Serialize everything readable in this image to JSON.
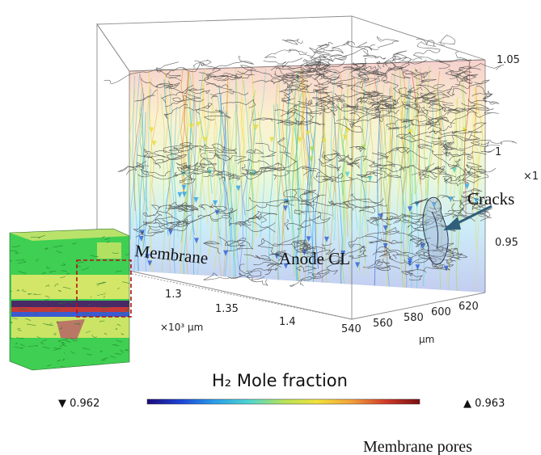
{
  "figure": {
    "annotations": {
      "membrane": "Membrane",
      "anode_cl": "Anode CL",
      "cracks": "Cracks",
      "membrane_pores": "Membrane pores"
    },
    "axes": {
      "z_ticks": [
        "1.05",
        "1",
        "0.95"
      ],
      "z_multiplier": "×1",
      "x_ticks": [
        "1.3",
        "1.35",
        "1.4"
      ],
      "x_unit": "×10³ µm",
      "y_ticks": [
        "540",
        "560",
        "580",
        "600",
        "620"
      ],
      "y_unit": "µm"
    },
    "colorbar": {
      "title": "H₂ Mole fraction",
      "min_label": "▼ 0.962",
      "max_label": "▲ 0.963",
      "stops": [
        "#1c0a7a",
        "#1d45d8",
        "#2aa0e8",
        "#4fd6d0",
        "#b6e35a",
        "#f1e13a",
        "#f2a13a",
        "#d23a2a",
        "#7a0f10"
      ]
    },
    "inset": {
      "layer_colors": {
        "membrane_green": "#3fcf52",
        "catalyst_yellow": "#e4e869",
        "ionomer_purple": "#4a2a66",
        "red_band": "#c63a3a",
        "blue_band": "#3b5bd1",
        "crop_box": "#b01414"
      }
    }
  }
}
